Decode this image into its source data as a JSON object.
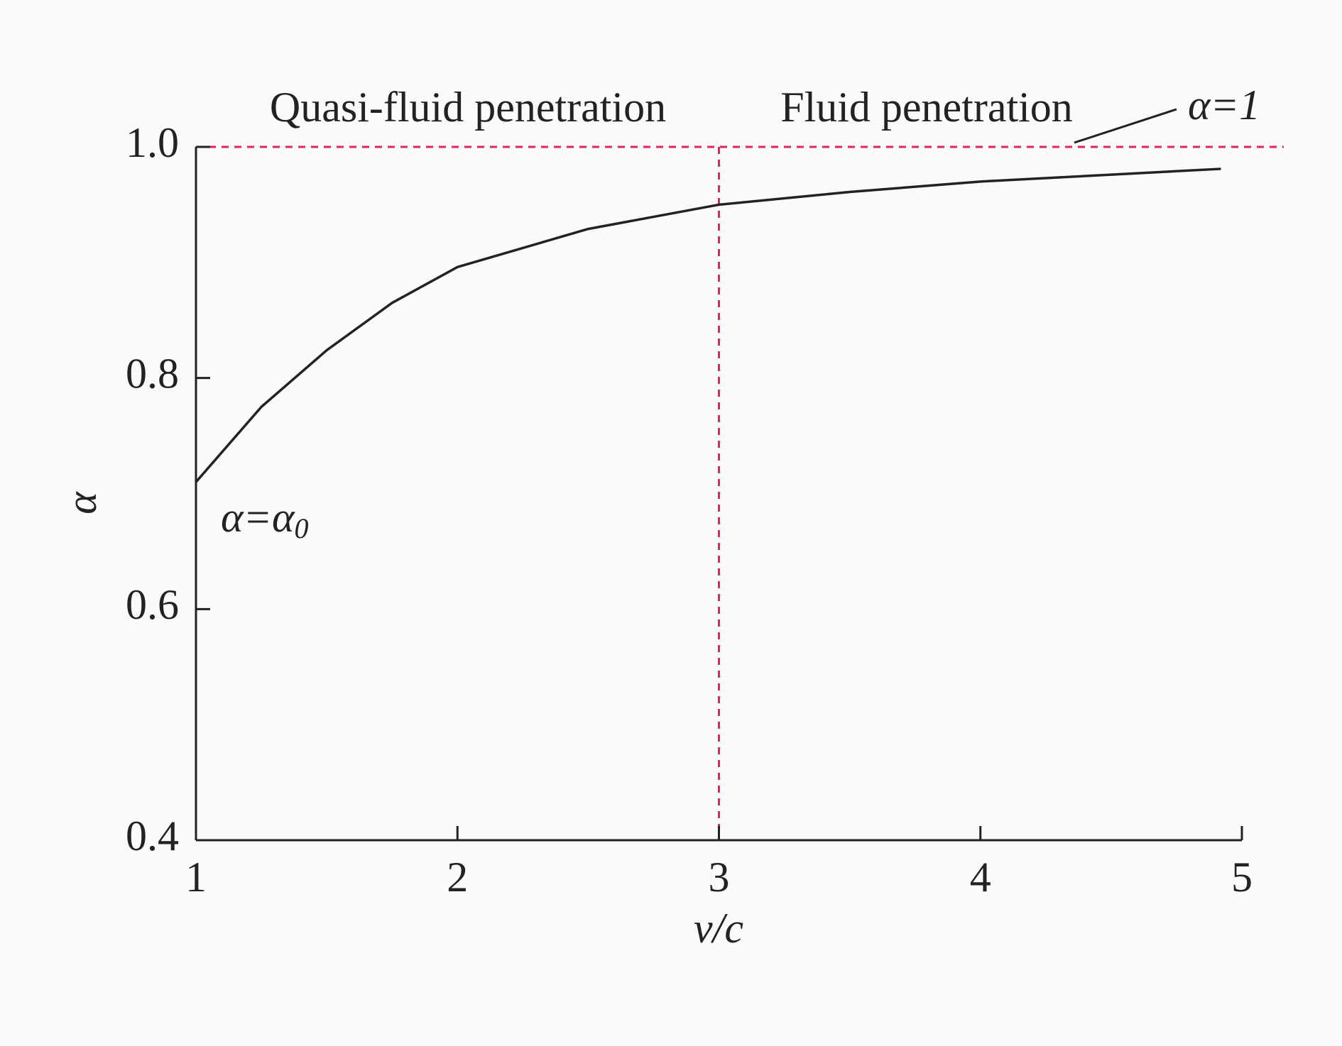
{
  "chart_data": {
    "type": "line",
    "x_label": "v/c",
    "y_label": "α",
    "x": [
      1,
      1.25,
      1.5,
      1.75,
      2,
      2.5,
      3,
      3.5,
      4,
      4.5,
      4.92
    ],
    "series": [
      {
        "color": "#222222",
        "values": [
          0.71,
          0.775,
          0.824,
          0.865,
          0.896,
          0.929,
          0.95,
          0.961,
          0.97,
          0.976,
          0.981
        ]
      }
    ],
    "xlim": [
      1,
      5
    ],
    "xticks": [
      1,
      2,
      3,
      4,
      5
    ],
    "ylim": [
      0.4,
      1
    ],
    "yticks": [
      0.4,
      0.6,
      0.8,
      {
        "value": 1,
        "label": "1.0"
      }
    ],
    "hline": 1,
    "vline": 3,
    "reference_color": "#e0245e",
    "annotations": {
      "left_region": "Quasi-fluid penetration",
      "right_region": "Fluid penetration",
      "upper_limit": "α=1",
      "start": {
        "text": "α=α",
        "subscript": "0"
      }
    }
  }
}
